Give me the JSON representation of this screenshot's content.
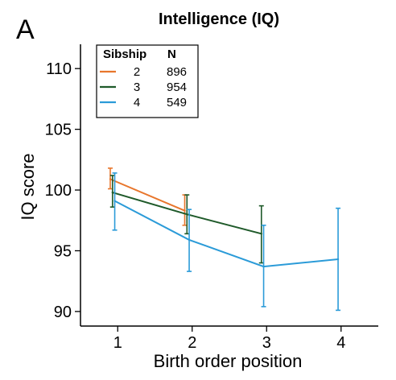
{
  "panel_label": "A",
  "chart_data": {
    "type": "line",
    "title": "Intelligence (IQ)",
    "xlabel": "Birth order position",
    "ylabel": "IQ score",
    "xlim": [
      0.5,
      4.5
    ],
    "ylim": [
      88.8,
      112
    ],
    "xticks": [
      1,
      2,
      3,
      4
    ],
    "yticks": [
      90,
      95,
      100,
      105,
      110
    ],
    "legend": {
      "title": "Sibship",
      "n_header": "N",
      "position": "top-left"
    },
    "series": [
      {
        "name": "2",
        "n": "896",
        "color": "#E8762C",
        "points": [
          {
            "x": 1,
            "y": 100.9,
            "lo": 100.1,
            "hi": 101.8
          },
          {
            "x": 2,
            "y": 98.3,
            "lo": 97.1,
            "hi": 99.6
          }
        ]
      },
      {
        "name": "3",
        "n": "954",
        "color": "#1F5A2A",
        "points": [
          {
            "x": 1,
            "y": 99.8,
            "lo": 98.6,
            "hi": 101.2
          },
          {
            "x": 2,
            "y": 98.0,
            "lo": 96.4,
            "hi": 99.6
          },
          {
            "x": 3,
            "y": 96.4,
            "lo": 94.0,
            "hi": 98.7
          }
        ]
      },
      {
        "name": "4",
        "n": "549",
        "color": "#2B9BD8",
        "points": [
          {
            "x": 1,
            "y": 99.1,
            "lo": 96.7,
            "hi": 101.4
          },
          {
            "x": 2,
            "y": 95.9,
            "lo": 93.3,
            "hi": 98.4
          },
          {
            "x": 3,
            "y": 93.7,
            "lo": 90.4,
            "hi": 97.1
          },
          {
            "x": 4,
            "y": 94.3,
            "lo": 90.1,
            "hi": 98.5
          }
        ]
      }
    ]
  }
}
